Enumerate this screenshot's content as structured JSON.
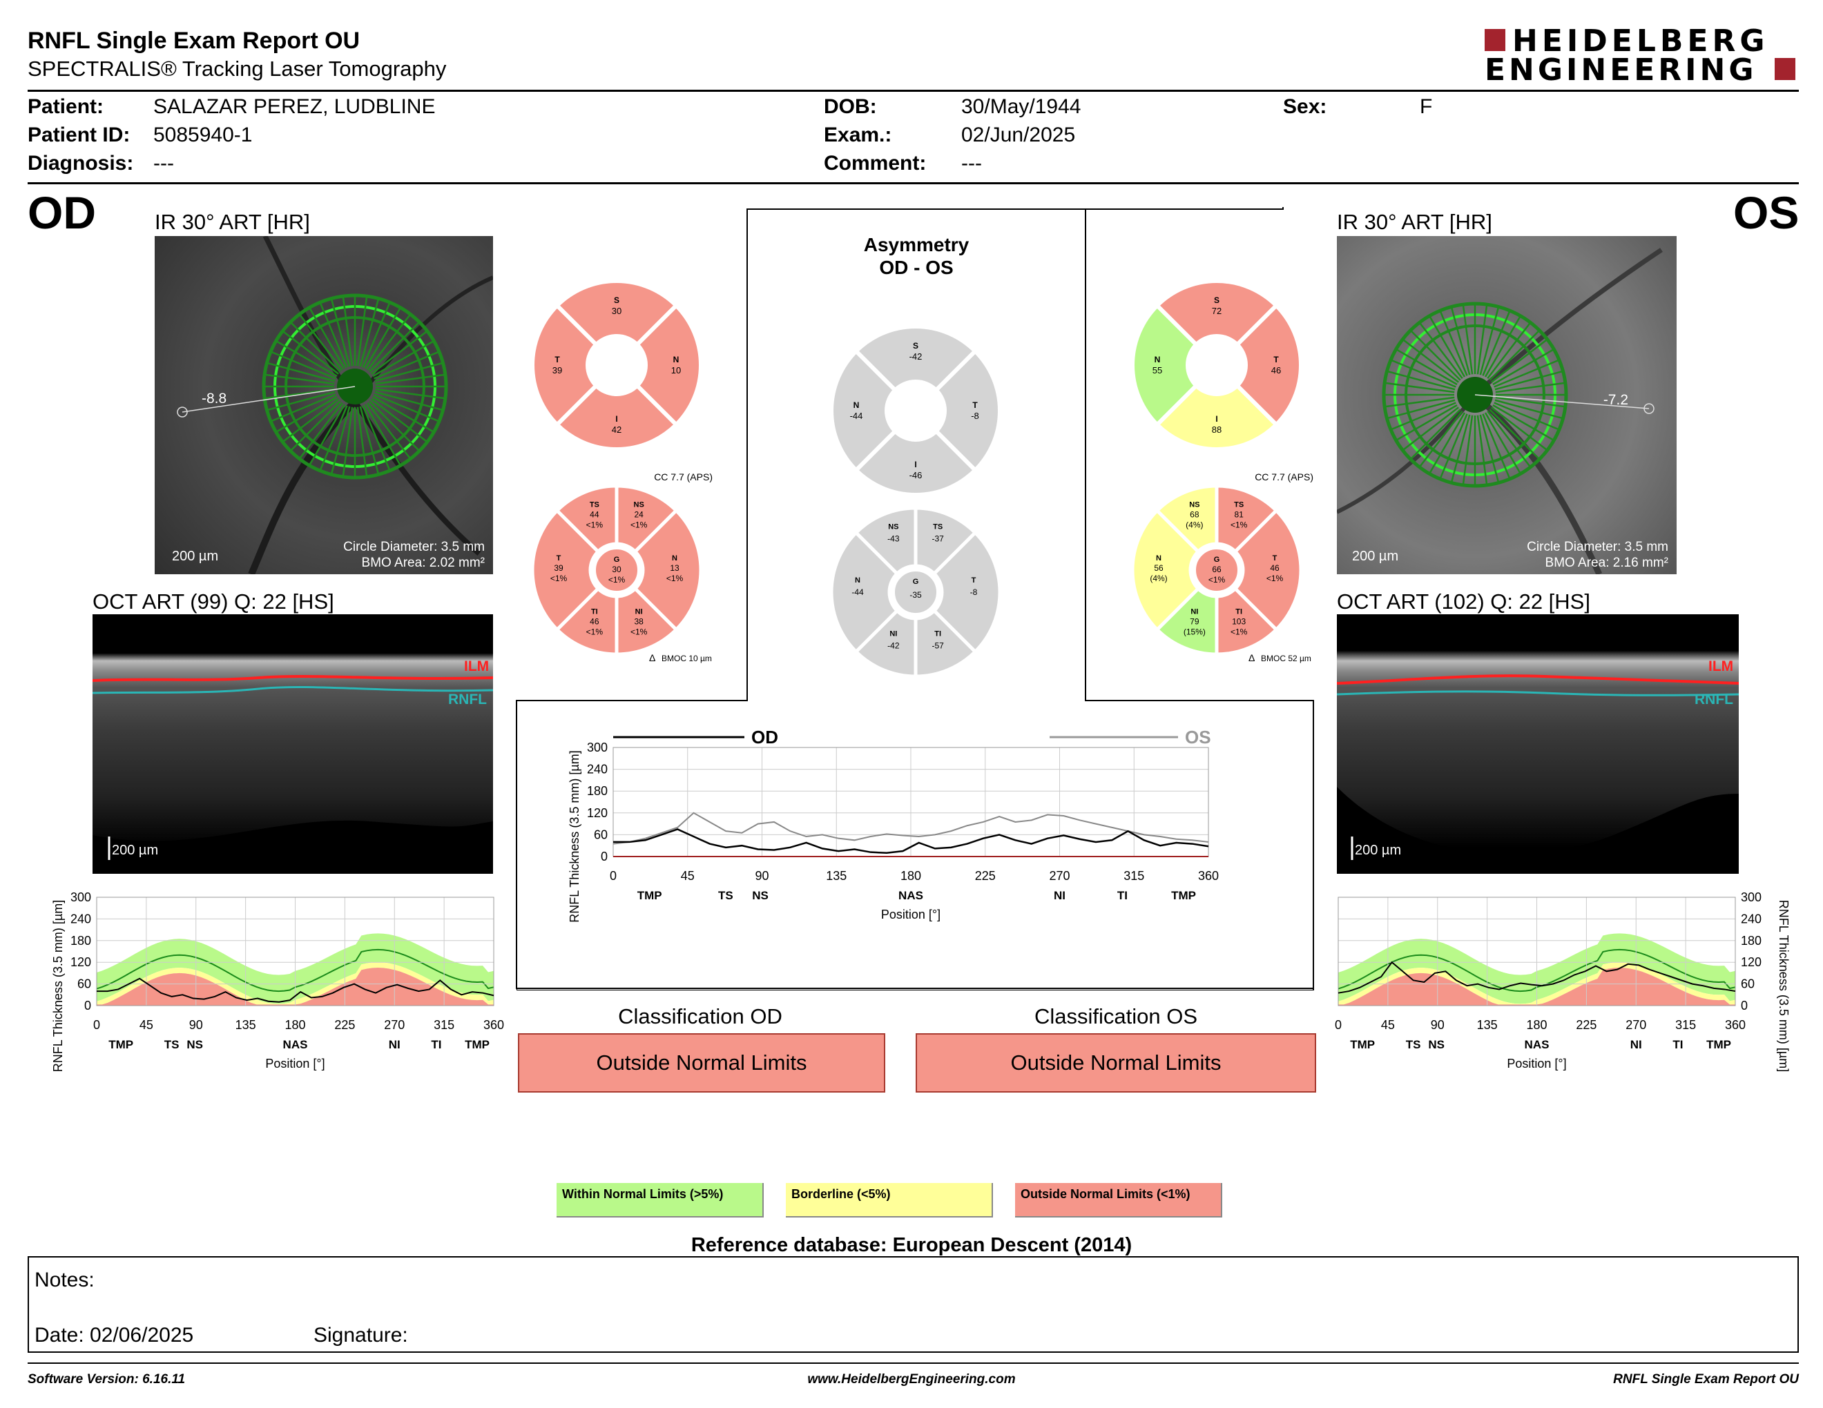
{
  "header": {
    "title": "RNFL Single Exam Report OU",
    "subtitle": "SPECTRALIS® Tracking Laser Tomography",
    "logo_line1": "HEIDELBERG",
    "logo_line2": "ENGINEERING"
  },
  "patient": {
    "patient_label": "Patient:",
    "patient_value": "SALAZAR PEREZ, LUDBLINE",
    "id_label": "Patient ID:",
    "id_value": "5085940-1",
    "diagnosis_label": "Diagnosis:",
    "diagnosis_value": "---",
    "dob_label": "DOB:",
    "dob_value": "30/May/1944",
    "exam_label": "Exam.:",
    "exam_value": "02/Jun/2025",
    "comment_label": "Comment:",
    "comment_value": "---",
    "sex_label": "Sex:",
    "sex_value": "F"
  },
  "od": {
    "eye": "OD",
    "ir_caption": "IR 30° ART [HR]",
    "ir_offset": "-8.8",
    "ir_scale": "200 µm",
    "ir_circle": "Circle Diameter: 3.5 mm",
    "ir_bmo": "BMO Area: 2.02 mm²",
    "oct_caption": "OCT ART (99) Q: 22 [HS]",
    "oct_scale": "200 µm",
    "ilm": "ILM",
    "rnfl": "RNFL",
    "cc": "CC 7.7 (APS)",
    "bmoc": "BMOC 10 µm",
    "quad": {
      "S": "30",
      "N": "10",
      "I": "42",
      "T": "39"
    },
    "sectors": {
      "TS": [
        "44",
        "<1%"
      ],
      "NS": [
        "24",
        "<1%"
      ],
      "N": [
        "13",
        "<1%"
      ],
      "NI": [
        "38",
        "<1%"
      ],
      "TI": [
        "46",
        "<1%"
      ],
      "T": [
        "39",
        "<1%"
      ],
      "G": [
        "30",
        "<1%"
      ]
    },
    "classification_title": "Classification OD",
    "classification": "Outside Normal Limits",
    "profile": [
      40,
      40,
      45,
      60,
      75,
      55,
      35,
      25,
      30,
      20,
      18,
      25,
      38,
      22,
      15,
      20,
      12,
      10,
      15,
      38,
      22,
      25,
      35,
      50,
      60,
      45,
      35,
      50,
      58,
      48,
      40,
      45,
      70,
      45,
      30,
      38,
      35,
      28
    ]
  },
  "os": {
    "eye": "OS",
    "ir_caption": "IR 30° ART [HR]",
    "ir_offset": "-7.2",
    "ir_scale": "200 µm",
    "ir_circle": "Circle Diameter: 3.5 mm",
    "ir_bmo": "BMO Area: 2.16 mm²",
    "oct_caption": "OCT ART (102) Q: 22 [HS]",
    "oct_scale": "200 µm",
    "ilm": "ILM",
    "rnfl": "RNFL",
    "cc": "CC 7.7 (APS)",
    "bmoc": "BMOC 52 µm",
    "quad": {
      "S": "72",
      "N": "55",
      "I": "88",
      "T": "46"
    },
    "sectors": {
      "NS": [
        "68",
        "(4%)"
      ],
      "TS": [
        "81",
        "<1%"
      ],
      "T": [
        "46",
        "<1%"
      ],
      "TI": [
        "103",
        "<1%"
      ],
      "NI": [
        "79",
        "(15%)"
      ],
      "N": [
        "56",
        "(4%)"
      ],
      "G": [
        "66",
        "<1%"
      ]
    },
    "classification_title": "Classification OS",
    "classification": "Outside Normal Limits",
    "profile": [
      35,
      40,
      50,
      65,
      80,
      120,
      95,
      70,
      65,
      90,
      95,
      70,
      55,
      60,
      50,
      45,
      55,
      62,
      58,
      55,
      60,
      70,
      85,
      95,
      110,
      95,
      100,
      115,
      112,
      100,
      90,
      80,
      70,
      60,
      55,
      48,
      45,
      40
    ]
  },
  "asym": {
    "title1": "Asymmetry",
    "title2": "OD - OS",
    "quad": {
      "S": "-42",
      "N": "-44",
      "I": "-46",
      "T": "-8"
    },
    "sectors": {
      "NS": "-43",
      "TS": "-37",
      "T": "-8",
      "TI": "-57",
      "NI": "-42",
      "N": "-44",
      "G": "-35"
    }
  },
  "chart_data": [
    {
      "type": "line",
      "title": "",
      "ylabel": "RNFL Thickness (3.5 mm) [µm]",
      "xlabel": "Position [°]",
      "xlim": [
        0,
        360
      ],
      "ylim": [
        0,
        300
      ],
      "x_ticks": [
        "0",
        "45",
        "90",
        "135",
        "180",
        "225",
        "270",
        "315",
        "360"
      ],
      "y_ticks": [
        "0",
        "60",
        "120",
        "180",
        "240",
        "300"
      ],
      "sector_labels": [
        "TMP",
        "TS",
        "NS",
        "NAS",
        "NI",
        "TI",
        "TMP"
      ],
      "series": [
        {
          "name": "OD"
        },
        {
          "name": "OS"
        }
      ]
    }
  ],
  "classification_colors": {
    "within": "#b9f98a",
    "borderline": "#ffff99",
    "outside": "#f5968a",
    "gray": "#d4d4d4"
  },
  "legend": {
    "within": "Within Normal Limits (>5%)",
    "borderline": "Borderline (<5%)",
    "outside": "Outside Normal Limits (<1%)"
  },
  "reference": "Reference database: European Descent (2014)",
  "notes": {
    "notes_label": "Notes:",
    "date_label": "Date: 02/06/2025",
    "signature_label": "Signature:"
  },
  "footer": {
    "software": "Software Version: 6.16.11",
    "url": "www.HeidelbergEngineering.com",
    "report": "RNFL Single Exam Report OU"
  }
}
